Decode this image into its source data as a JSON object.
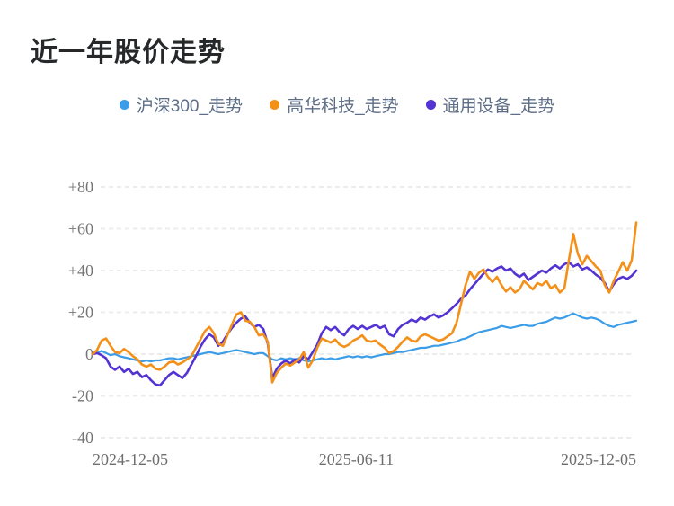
{
  "title": "近一年股价走势",
  "chart_data": {
    "type": "line",
    "title": "近一年股价走势",
    "xlabel": "",
    "ylabel": "",
    "ylim": [
      -40,
      80
    ],
    "grid": "dashed-horizontal",
    "legend_position": "top-center",
    "y_ticks": [
      {
        "label": "+80",
        "value": 80
      },
      {
        "label": "+60",
        "value": 60
      },
      {
        "label": "+40",
        "value": 40
      },
      {
        "label": "+20",
        "value": 20
      },
      {
        "label": "0",
        "value": 0
      },
      {
        "label": "-20",
        "value": -20
      },
      {
        "label": "-40",
        "value": -40
      }
    ],
    "x_tick_labels": [
      {
        "label": "2024-12-05",
        "frac": 0.0
      },
      {
        "label": "2025-06-11",
        "frac": 0.485
      },
      {
        "label": "2025-12-05",
        "frac": 1.0
      }
    ],
    "x_range": [
      "2024-12-05",
      "2025-12-05"
    ],
    "series": [
      {
        "name": "沪深300_走势",
        "color": "#3b9de8",
        "width": 2.2,
        "values": [
          0,
          0.5,
          1.5,
          0.5,
          -0.5,
          0,
          -1,
          -1.5,
          -2,
          -2.5,
          -3,
          -3.5,
          -3,
          -3.5,
          -3,
          -3,
          -2.5,
          -2,
          -2,
          -2.5,
          -2,
          -1.5,
          -1,
          -0.5,
          0,
          0.5,
          1,
          0.5,
          0,
          0.5,
          1,
          1.5,
          2,
          1.5,
          1,
          0.5,
          0,
          0.5,
          0.5,
          -1,
          -2.5,
          -3,
          -2,
          -2.5,
          -2,
          -2.5,
          -2,
          -3,
          -3.5,
          -3,
          -2.5,
          -2,
          -2.5,
          -2,
          -2.5,
          -2,
          -1.5,
          -1,
          -1.5,
          -1,
          -1.5,
          -1,
          -1.5,
          -1,
          -0.5,
          0,
          0,
          0.5,
          1,
          1,
          1.5,
          2,
          2.5,
          3,
          3,
          3.5,
          4,
          4,
          4.5,
          5,
          5.5,
          6,
          7,
          7.5,
          8.5,
          9.5,
          10.5,
          11,
          11.5,
          12,
          12.5,
          13.5,
          13,
          12.5,
          13,
          13.5,
          14,
          13.5,
          13.5,
          14.5,
          15,
          15.5,
          16.5,
          17.5,
          17,
          17.5,
          18.5,
          19.5,
          18.5,
          17.5,
          17,
          17.5,
          17,
          16,
          14.5,
          13.5,
          13,
          14,
          14.5,
          15,
          15.5,
          16
        ]
      },
      {
        "name": "高华科技_走势",
        "color": "#f39019",
        "width": 2.6,
        "values": [
          0,
          2,
          6.5,
          7.5,
          4,
          1,
          0.5,
          2.5,
          1,
          -1,
          -2.5,
          -5,
          -6,
          -5,
          -7,
          -7.5,
          -6,
          -4,
          -3.5,
          -5,
          -4,
          -2.5,
          -1,
          3,
          7,
          11,
          13,
          10,
          5,
          4,
          9,
          14,
          19,
          20,
          16,
          15.5,
          13,
          9,
          9.5,
          6,
          -13.5,
          -9,
          -6.5,
          -4.5,
          -5.5,
          -4,
          -2.5,
          1,
          -6.5,
          -3,
          3,
          7.5,
          6.5,
          5.5,
          7,
          4.5,
          3.5,
          4.5,
          6.5,
          7.5,
          9,
          6.5,
          6,
          6.5,
          4.5,
          3,
          0.5,
          1.5,
          3.5,
          6,
          8,
          6.5,
          6,
          8.5,
          9.5,
          8.5,
          7.5,
          6.5,
          7,
          8.5,
          10,
          15,
          24,
          33,
          39.5,
          36,
          39,
          40.5,
          37,
          34.5,
          37,
          33,
          30,
          32,
          29.5,
          31,
          35,
          33,
          31,
          34,
          33,
          35,
          31.5,
          33,
          29.5,
          31.5,
          45,
          57.5,
          48,
          43,
          47,
          44.5,
          42,
          40,
          33,
          29.5,
          35,
          39.5,
          44,
          40,
          45,
          63
        ]
      },
      {
        "name": "通用设备_走势",
        "color": "#5433d3",
        "width": 2.6,
        "values": [
          0,
          0.5,
          -0.5,
          -2,
          -6,
          -7.5,
          -6,
          -8.5,
          -7,
          -9.5,
          -8.5,
          -11,
          -10,
          -12.5,
          -14.5,
          -15,
          -12.5,
          -10,
          -8.5,
          -10,
          -11.5,
          -9,
          -5,
          -1,
          3.5,
          7,
          9.5,
          8,
          4,
          6,
          9.5,
          12.5,
          15,
          17,
          18,
          15,
          13,
          14,
          12,
          5,
          -11.5,
          -7,
          -4.5,
          -3,
          -4.5,
          -2.5,
          -4,
          -1,
          -2.5,
          1,
          4.5,
          10,
          13,
          11.5,
          13,
          10.5,
          9,
          12,
          13.5,
          12,
          13.5,
          12,
          13,
          14,
          12.5,
          13.5,
          9.5,
          8.5,
          12,
          14,
          15,
          16.5,
          15.5,
          17.5,
          16.5,
          18,
          19,
          17.5,
          18.5,
          20,
          22,
          24,
          26.5,
          28,
          31,
          33.5,
          36,
          38.5,
          40.5,
          39.5,
          41,
          42,
          40,
          41,
          38.5,
          37,
          38.5,
          35.5,
          37,
          38.5,
          40,
          39,
          41,
          42.5,
          41,
          43,
          44,
          42,
          43,
          40.5,
          41.5,
          40,
          38,
          36.5,
          34,
          30,
          33.5,
          36,
          37,
          36,
          37.5,
          40
        ]
      }
    ],
    "colors": {
      "grid": "#ececec",
      "title_text": "#26282a",
      "legend_text": "#5e6e87",
      "axis_text": "#757575"
    }
  }
}
